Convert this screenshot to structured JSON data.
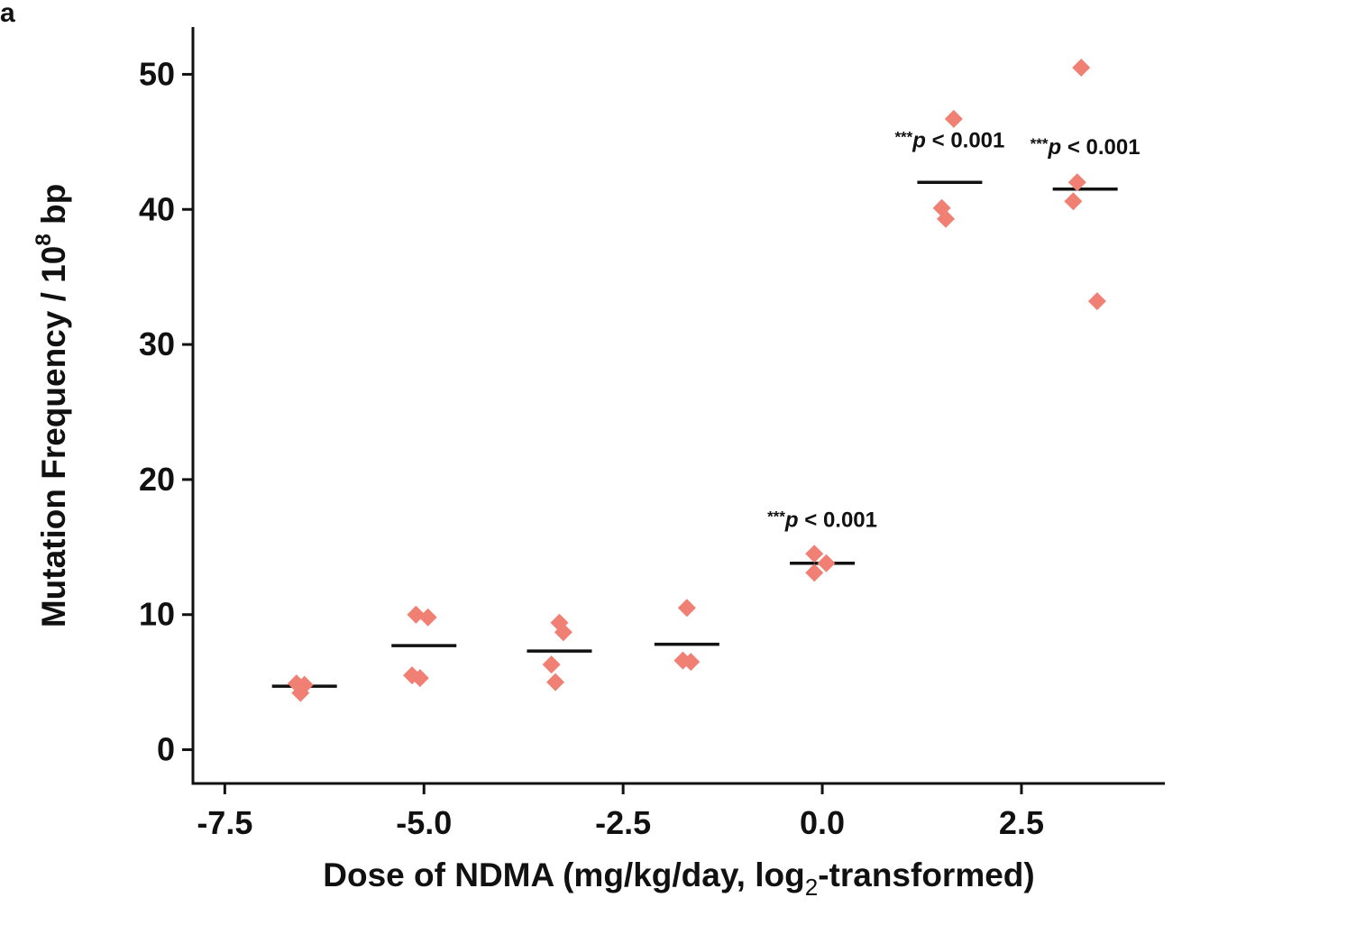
{
  "panel_label": "a",
  "chart_data": {
    "type": "scatter",
    "title": "",
    "xlabel": {
      "main": "Dose of NDMA (mg/kg/day, log",
      "subscript": "2",
      "tail": "-transformed)"
    },
    "ylabel": {
      "main": "Mutation Frequency / 10",
      "superscript": "8",
      "tail": " bp"
    },
    "xlim": [
      -7.9,
      4.3
    ],
    "ylim": [
      -2.5,
      53.5
    ],
    "x_ticks": [
      {
        "value": -7.5,
        "label": "-7.5"
      },
      {
        "value": -5.0,
        "label": "-5.0"
      },
      {
        "value": -2.5,
        "label": "-2.5"
      },
      {
        "value": 0.0,
        "label": "0.0"
      },
      {
        "value": 2.5,
        "label": "2.5"
      }
    ],
    "y_ticks": [
      {
        "value": 0,
        "label": "0"
      },
      {
        "value": 10,
        "label": "10"
      },
      {
        "value": 20,
        "label": "20"
      },
      {
        "value": 30,
        "label": "30"
      },
      {
        "value": 40,
        "label": "40"
      },
      {
        "value": 50,
        "label": "50"
      }
    ],
    "grid": false,
    "point_color": "#f07f74",
    "mean_line_color": "#111111",
    "groups": [
      {
        "points": [
          [
            -6.6,
            4.9
          ],
          [
            -6.5,
            4.8
          ],
          [
            -6.55,
            4.2
          ]
        ],
        "mean": 4.7,
        "mean_x": -6.5
      },
      {
        "points": [
          [
            -5.1,
            10.0
          ],
          [
            -4.95,
            9.8
          ],
          [
            -5.15,
            5.5
          ],
          [
            -5.05,
            5.3
          ]
        ],
        "mean": 7.7,
        "mean_x": -5.0
      },
      {
        "points": [
          [
            -3.3,
            9.4
          ],
          [
            -3.25,
            8.7
          ],
          [
            -3.4,
            6.3
          ],
          [
            -3.35,
            5.0
          ]
        ],
        "mean": 7.3,
        "mean_x": -3.3
      },
      {
        "points": [
          [
            -1.7,
            10.5
          ],
          [
            -1.75,
            6.6
          ],
          [
            -1.65,
            6.5
          ]
        ],
        "mean": 7.8,
        "mean_x": -1.7
      },
      {
        "points": [
          [
            -0.1,
            14.5
          ],
          [
            0.05,
            13.8
          ],
          [
            -0.1,
            13.1
          ]
        ],
        "mean": 13.8,
        "mean_x": 0.0
      },
      {
        "points": [
          [
            1.65,
            46.7
          ],
          [
            1.5,
            40.1
          ],
          [
            1.55,
            39.3
          ]
        ],
        "mean": 42.0,
        "mean_x": 1.6
      },
      {
        "points": [
          [
            3.25,
            50.5
          ],
          [
            3.2,
            42.0
          ],
          [
            3.15,
            40.6
          ],
          [
            3.45,
            33.2
          ]
        ],
        "mean": 41.5,
        "mean_x": 3.3
      }
    ],
    "annotations": [
      {
        "stars": "***",
        "p": "p",
        "text": " < 0.001",
        "x": 0.0,
        "y": 16.5
      },
      {
        "stars": "***",
        "p": "p",
        "text": " < 0.001",
        "x": 1.6,
        "y": 44.6
      },
      {
        "stars": "***",
        "p": "p",
        "text": " < 0.001",
        "x": 3.3,
        "y": 44.1
      }
    ]
  }
}
